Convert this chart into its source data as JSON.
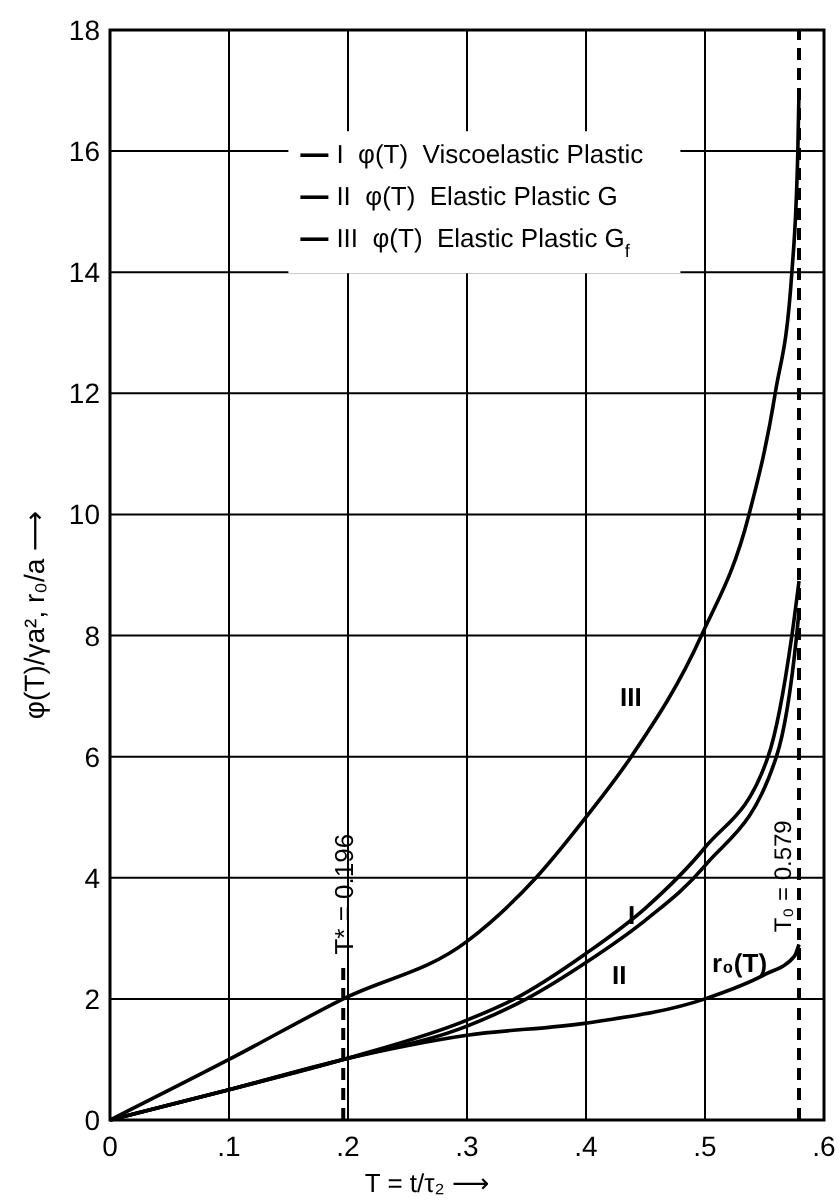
{
  "chart_data": {
    "type": "line",
    "xlabel": "T = t/τ₂ ⟶",
    "ylabel": "φ(T)/γa², r₀/a ⟶",
    "xlim": [
      0,
      0.6
    ],
    "xticks": [
      0,
      {
        "value": 0.1,
        "label": ".1"
      },
      {
        "value": 0.2,
        "label": ".2"
      },
      {
        "value": 0.3,
        "label": ".3"
      },
      {
        "value": 0.4,
        "label": ".4"
      },
      {
        "value": 0.5,
        "label": ".5"
      },
      {
        "value": 0.6,
        "label": ".6"
      }
    ],
    "ylim": [
      0,
      18
    ],
    "yticks": [
      0,
      2,
      4,
      6,
      8,
      10,
      12,
      14,
      16,
      18
    ],
    "grid": true,
    "legend": "top",
    "marker": "none",
    "line_style": "solid",
    "series": [
      {
        "name": "I  φ(T)  Viscoelastic Plastic",
        "color": "#000000",
        "x": [
          0,
          0.1,
          0.196,
          0.3,
          0.34,
          0.4,
          0.45,
          0.5,
          0.553,
          0.573,
          0.579
        ],
        "values": [
          0,
          0.5,
          1,
          1.65,
          2,
          2.75,
          3.5,
          4.5,
          6,
          8,
          8.9
        ]
      },
      {
        "name": "II  φ(T)  Elastic Plastic G",
        "color": "#000000",
        "x": [
          0,
          0.1,
          0.196,
          0.3,
          0.35,
          0.4,
          0.45,
          0.5,
          0.56,
          0.577,
          0.579
        ],
        "values": [
          0,
          0.5,
          1,
          1.55,
          2,
          2.6,
          3.3,
          4.2,
          6,
          8,
          8.4
        ]
      },
      {
        "name": "III  φ(T)  Elastic Plastic G$_{f}$",
        "color": "#000000",
        "x": [
          0,
          0.1,
          0.196,
          0.3,
          0.358,
          0.4,
          0.438,
          0.497,
          0.537,
          0.559,
          0.573,
          0.578,
          0.579
        ],
        "values": [
          0,
          1,
          2,
          2.95,
          4,
          5,
          6,
          8,
          10,
          12,
          14,
          16,
          17
        ]
      },
      {
        "color": "#000000",
        "x": [
          0,
          0.1,
          0.196,
          0.3,
          0.4,
          0.5,
          0.55,
          0.575,
          0.579
        ],
        "values": [
          0,
          0.5,
          1,
          1.4,
          1.6,
          2,
          2.4,
          2.7,
          2.9
        ]
      }
    ],
    "ref_lines": [
      {
        "axis": "x",
        "value": 0.196,
        "label": "T* = 0.196",
        "line_style": "dashed"
      },
      {
        "axis": "x",
        "value": 0.579,
        "label": "T₀ = 0.579",
        "line_style": "dashed"
      }
    ],
    "annotations": [
      "I",
      "II",
      "III",
      "r₀(T)"
    ]
  }
}
